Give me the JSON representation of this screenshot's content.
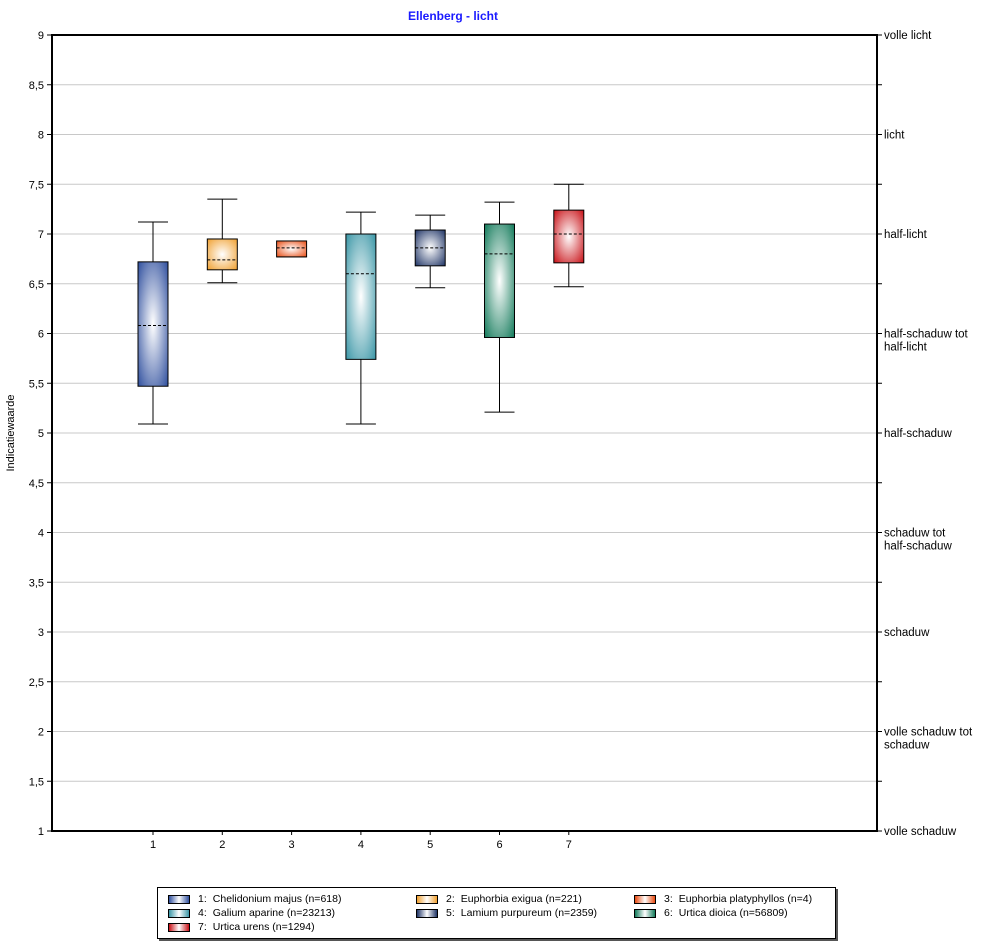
{
  "chart_data": {
    "type": "boxplot",
    "title": "Ellenberg - licht",
    "ylabel": "Indicatiewaarde",
    "ylim": [
      1,
      9
    ],
    "yticks": [
      "1",
      "1,5",
      "2",
      "2,5",
      "3",
      "3,5",
      "4",
      "4,5",
      "5",
      "5,5",
      "6",
      "6,5",
      "7",
      "7,5",
      "8",
      "8,5",
      "9"
    ],
    "categories": [
      "1",
      "2",
      "3",
      "4",
      "5",
      "6",
      "7"
    ],
    "grid": true,
    "legend_position": "bottom",
    "right_axis_labels": [
      {
        "value": 9,
        "lines": [
          "volle licht"
        ]
      },
      {
        "value": 8,
        "lines": [
          "licht"
        ]
      },
      {
        "value": 7,
        "lines": [
          "half-licht"
        ]
      },
      {
        "value": 6,
        "lines": [
          "half-schaduw tot",
          "half-licht"
        ]
      },
      {
        "value": 5,
        "lines": [
          "half-schaduw"
        ]
      },
      {
        "value": 4,
        "lines": [
          "schaduw tot",
          "half-schaduw"
        ]
      },
      {
        "value": 3,
        "lines": [
          "schaduw"
        ]
      },
      {
        "value": 2,
        "lines": [
          "volle schaduw tot",
          "schaduw"
        ]
      },
      {
        "value": 1,
        "lines": [
          "volle schaduw"
        ]
      }
    ],
    "series": [
      {
        "category": "1",
        "name": "Chelidonium majus (n=618)",
        "min": 5.09,
        "q1": 5.47,
        "median": 6.08,
        "q3": 6.72,
        "max": 7.12,
        "color": "#2f4f9e"
      },
      {
        "category": "2",
        "name": "Euphorbia exigua (n=221)",
        "min": 6.51,
        "q1": 6.64,
        "median": 6.74,
        "q3": 6.95,
        "max": 7.35,
        "color": "#f0a030"
      },
      {
        "category": "3",
        "name": "Euphorbia platyphyllos (n=4)",
        "min": 6.77,
        "q1": 6.77,
        "median": 6.86,
        "q3": 6.93,
        "max": 6.93,
        "color": "#e84a10"
      },
      {
        "category": "4",
        "name": "Galium aparine (n=23213)",
        "min": 5.09,
        "q1": 5.74,
        "median": 6.6,
        "q3": 7.0,
        "max": 7.22,
        "color": "#3a96a6"
      },
      {
        "category": "5",
        "name": "Lamium purpureum (n=2359)",
        "min": 6.46,
        "q1": 6.68,
        "median": 6.86,
        "q3": 7.04,
        "max": 7.19,
        "color": "#1f3466"
      },
      {
        "category": "6",
        "name": "Urtica dioica (n=56809)",
        "min": 5.21,
        "q1": 5.96,
        "median": 6.8,
        "q3": 7.1,
        "max": 7.32,
        "color": "#127a5a"
      },
      {
        "category": "7",
        "name": "Urtica urens (n=1294)",
        "min": 6.47,
        "q1": 6.71,
        "median": 7.0,
        "q3": 7.24,
        "max": 7.5,
        "color": "#c80f15"
      }
    ],
    "legend": [
      {
        "number": "1:",
        "label": "Chelidonium majus (n=618)"
      },
      {
        "number": "2:",
        "label": "Euphorbia exigua (n=221)"
      },
      {
        "number": "3:",
        "label": "Euphorbia platyphyllos (n=4)"
      },
      {
        "number": "4:",
        "label": "Galium aparine (n=23213)"
      },
      {
        "number": "5:",
        "label": "Lamium purpureum (n=2359)"
      },
      {
        "number": "6:",
        "label": "Urtica dioica (n=56809)"
      },
      {
        "number": "7:",
        "label": "Urtica urens (n=1294)"
      }
    ]
  }
}
